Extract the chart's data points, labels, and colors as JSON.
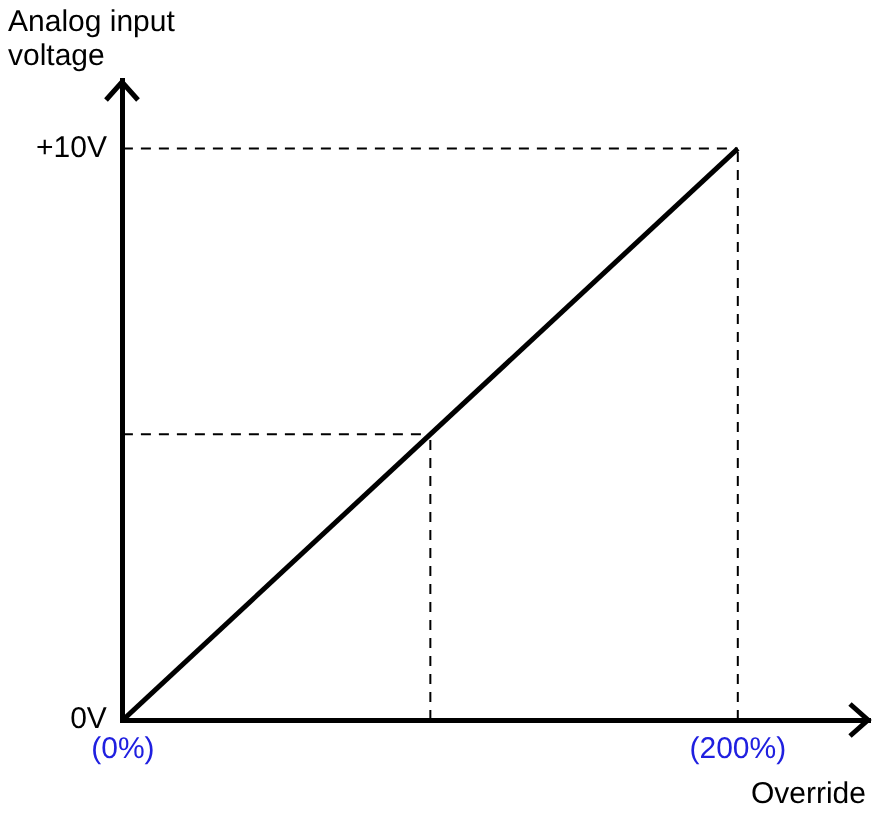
{
  "chart_data": {
    "type": "line",
    "ylabel": "Analog input voltage",
    "xlabel": "Override",
    "x": [
      0,
      200
    ],
    "series": [
      {
        "color": "#000000",
        "values": [
          0,
          10
        ]
      }
    ],
    "xlim": [
      0,
      243
    ],
    "ylim": [
      0,
      11.2
    ],
    "yticks": [
      {
        "value": 0,
        "label": "0V"
      },
      {
        "value": 10,
        "label": "+10V"
      }
    ],
    "xticks": [
      {
        "value": 0,
        "label": "(0%)"
      },
      {
        "value": 200,
        "label": "(200%)"
      }
    ],
    "grid": false,
    "legend": false,
    "marker": "none",
    "line_style": "solid",
    "ref_lines": [
      {
        "axis": "y",
        "value": 10,
        "line_style": "dashed",
        "color": "#000000"
      },
      {
        "axis": "x",
        "value": 200,
        "line_style": "dashed",
        "color": "#000000"
      },
      {
        "axis": "y",
        "value": 5,
        "line_style": "dashed",
        "color": "#000000"
      },
      {
        "axis": "x",
        "value": 100,
        "line_style": "dashed",
        "color": "#000000"
      }
    ]
  }
}
